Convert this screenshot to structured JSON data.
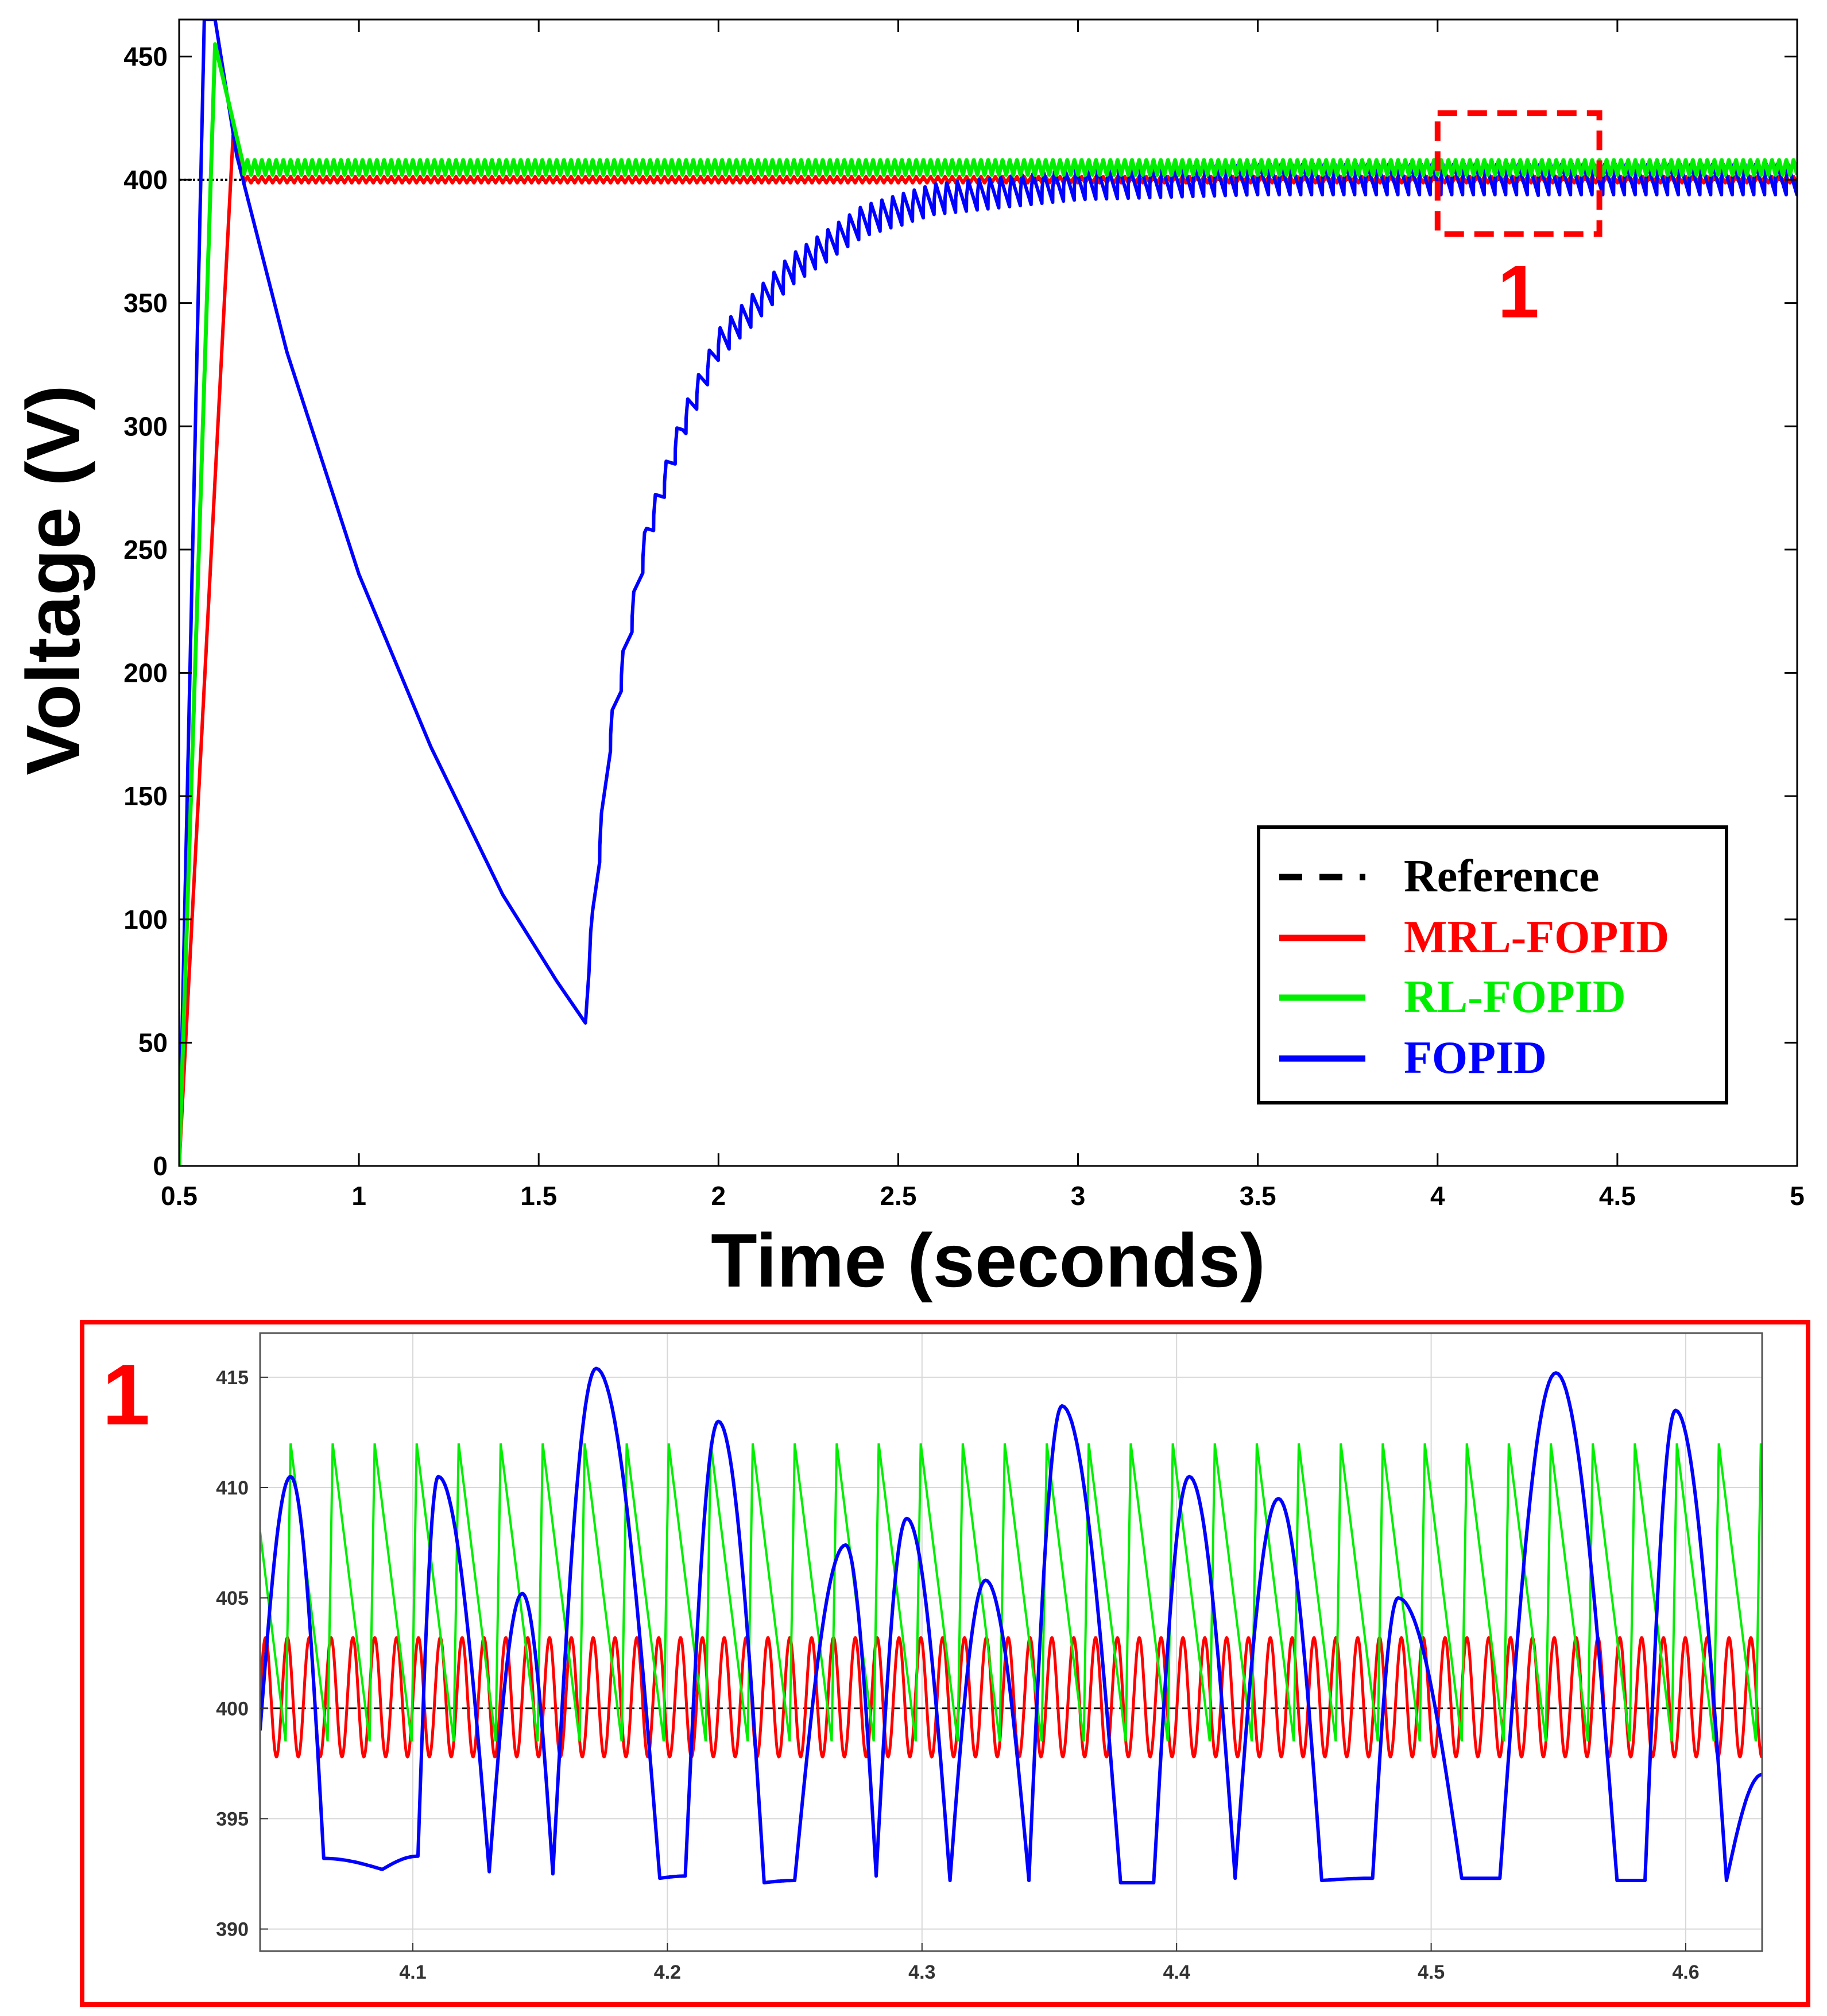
{
  "chart_data": [
    {
      "id": "main",
      "type": "line",
      "title": "",
      "xlabel": "Time (seconds)",
      "ylabel": "Voltage (V)",
      "xlim": [
        0.5,
        5
      ],
      "ylim": [
        0,
        465
      ],
      "xticks": [
        0.5,
        1,
        1.5,
        2,
        2.5,
        3,
        3.5,
        4,
        4.5,
        5
      ],
      "xtick_labels": [
        "0.5",
        "1",
        "1.5",
        "2",
        "2.5",
        "3",
        "3.5",
        "4",
        "4.5",
        "5"
      ],
      "yticks": [
        0,
        50,
        100,
        150,
        200,
        250,
        300,
        350,
        400,
        450
      ],
      "ytick_labels": [
        "0",
        "50",
        "100",
        "150",
        "200",
        "250",
        "300",
        "350",
        "400",
        "450"
      ],
      "grid": false,
      "legend_position": "bottom-right",
      "legend": [
        {
          "label": "Reference",
          "color": "#000000",
          "style": "dashed"
        },
        {
          "label": "MRL-FOPID",
          "color": "#ff0000",
          "style": "solid"
        },
        {
          "label": "RL-FOPID",
          "color": "#00ee00",
          "style": "solid"
        },
        {
          "label": "FOPID",
          "color": "#0000ff",
          "style": "solid"
        }
      ],
      "series": [
        {
          "name": "Reference",
          "points": [
            [
              0.5,
              400
            ],
            [
              5,
              400
            ]
          ]
        },
        {
          "name": "MRL-FOPID",
          "points": [
            [
              0.5,
              0
            ],
            [
              0.65,
              418
            ],
            [
              0.68,
              400
            ],
            [
              5,
              400
            ]
          ],
          "ripple_amplitude": 2.5,
          "ripple_period": 0.02,
          "ripple_start": 0.68
        },
        {
          "name": "RL-FOPID",
          "points": [
            [
              0.5,
              0
            ],
            [
              0.6,
              455
            ],
            [
              0.68,
              405
            ],
            [
              5,
              405
            ]
          ],
          "ripple_amplitude": 6,
          "ripple_period": 0.02,
          "ripple_start": 0.68
        },
        {
          "name": "FOPID",
          "points": [
            [
              0.5,
              0
            ],
            [
              0.53,
              200
            ],
            [
              0.57,
              465
            ],
            [
              0.6,
              465
            ],
            [
              0.66,
              410
            ],
            [
              0.8,
              330
            ],
            [
              1.0,
              240
            ],
            [
              1.2,
              170
            ],
            [
              1.4,
              110
            ],
            [
              1.55,
              75
            ],
            [
              1.63,
              58
            ],
            [
              1.65,
              100
            ],
            [
              1.7,
              175
            ],
            [
              1.8,
              255
            ],
            [
              1.9,
              300
            ],
            [
              2.0,
              333
            ],
            [
              2.2,
              363
            ],
            [
              2.4,
              383
            ],
            [
              2.6,
              392
            ],
            [
              3.0,
              398
            ],
            [
              3.5,
              400
            ],
            [
              5,
              400
            ]
          ],
          "ripple_amplitude": 7,
          "ripple_period": 0.03,
          "ripple_start": 1.64
        }
      ],
      "annotation": {
        "label": "1",
        "region": {
          "x": [
            4.0,
            4.45
          ],
          "y": [
            378,
            427
          ]
        }
      }
    },
    {
      "id": "zoom-1",
      "type": "line",
      "title": "1",
      "xlim": [
        4.04,
        4.63
      ],
      "ylim": [
        389,
        417
      ],
      "xticks": [
        4.1,
        4.2,
        4.3,
        4.4,
        4.5,
        4.6
      ],
      "xtick_labels": [
        "4.1",
        "4.2",
        "4.3",
        "4.4",
        "4.5",
        "4.6"
      ],
      "yticks": [
        390,
        395,
        400,
        405,
        410,
        415
      ],
      "ytick_labels": [
        "390",
        "395",
        "400",
        "405",
        "410",
        "415"
      ],
      "grid": true,
      "series": [
        {
          "name": "Reference",
          "constant": 400
        },
        {
          "name": "MRL-FOPID",
          "wave": "sine",
          "center": 400.5,
          "amplitude": 2.7,
          "period": 0.00858,
          "phase_x": 4.04
        },
        {
          "name": "RL-FOPID",
          "wave": "sawtooth",
          "peak": 412,
          "trough": 398.5,
          "period": 0.0165,
          "first_peak_x": 4.052
        },
        {
          "name": "FOPID",
          "peaks": [
            [
              4.052,
              410.5
            ],
            [
              4.11,
              410.5
            ],
            [
              4.143,
              405.2
            ],
            [
              4.172,
              415.4
            ],
            [
              4.22,
              413
            ],
            [
              4.27,
              407.4
            ],
            [
              4.294,
              408.6
            ],
            [
              4.325,
              405.8
            ],
            [
              4.355,
              413.7
            ],
            [
              4.405,
              410.5
            ],
            [
              4.44,
              409.5
            ],
            [
              4.487,
              405
            ],
            [
              4.549,
              415.2
            ],
            [
              4.596,
              413.5
            ]
          ],
          "troughs": [
            [
              4.065,
              393.2
            ],
            [
              4.088,
              392.7
            ],
            [
              4.102,
              393.3
            ],
            [
              4.13,
              392.6
            ],
            [
              4.155,
              392.5
            ],
            [
              4.197,
              392.3
            ],
            [
              4.207,
              392.4
            ],
            [
              4.238,
              392.1
            ],
            [
              4.25,
              392.2
            ],
            [
              4.282,
              392.4
            ],
            [
              4.311,
              392.2
            ],
            [
              4.342,
              392.2
            ],
            [
              4.378,
              392.1
            ],
            [
              4.391,
              392.1
            ],
            [
              4.423,
              392.3
            ],
            [
              4.457,
              392.2
            ],
            [
              4.477,
              392.3
            ],
            [
              4.512,
              392.3
            ],
            [
              4.527,
              392.3
            ],
            [
              4.573,
              392.2
            ],
            [
              4.584,
              392.2
            ],
            [
              4.616,
              392.2
            ]
          ],
          "start": [
            4.04,
            399
          ],
          "end": [
            4.63,
            397
          ]
        }
      ]
    }
  ]
}
